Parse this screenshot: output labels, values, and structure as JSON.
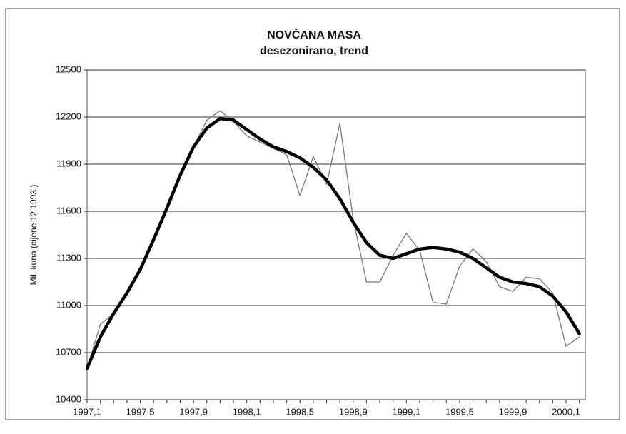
{
  "chart_data": {
    "type": "line",
    "title": "NOVČANA MASA",
    "subtitle": "desezonirano, trend",
    "y_label": "Mil. kuna (cijene 12.1993.)",
    "categories": [
      "1997,1",
      null,
      null,
      null,
      "1997,5",
      null,
      null,
      null,
      "1997,9",
      null,
      null,
      null,
      "1998,1",
      null,
      null,
      null,
      "1998,5",
      null,
      null,
      null,
      "1998,9",
      null,
      null,
      null,
      "1999,1",
      null,
      null,
      null,
      "1999,5",
      null,
      null,
      null,
      "1999,9",
      null,
      null,
      null,
      "2000,1",
      null
    ],
    "series": [
      {
        "color": "#777777",
        "width": 1.3,
        "values": [
          10600,
          10880,
          10950,
          11070,
          11230,
          11420,
          11620,
          11830,
          12010,
          12180,
          12240,
          12170,
          12080,
          12040,
          12000,
          11960,
          11700,
          11950,
          11770,
          12160,
          11550,
          11150,
          11150,
          11320,
          11460,
          11350,
          11020,
          11010,
          11250,
          11360,
          11280,
          11120,
          11090,
          11180,
          11170,
          11080,
          10740,
          10800
        ]
      },
      {
        "color": "#000000",
        "width": 4.5,
        "values": [
          10600,
          10800,
          10950,
          11080,
          11230,
          11420,
          11620,
          11830,
          12010,
          12130,
          12190,
          12180,
          12120,
          12060,
          12010,
          11980,
          11940,
          11880,
          11800,
          11680,
          11530,
          11400,
          11320,
          11300,
          11330,
          11360,
          11370,
          11360,
          11340,
          11300,
          11240,
          11180,
          11150,
          11140,
          11120,
          11060,
          10960,
          10820
        ]
      }
    ],
    "ylim": [
      10400,
      12500
    ],
    "yticks": [
      10400,
      10700,
      11000,
      11300,
      11600,
      11900,
      12200,
      12500
    ],
    "grid": true
  }
}
